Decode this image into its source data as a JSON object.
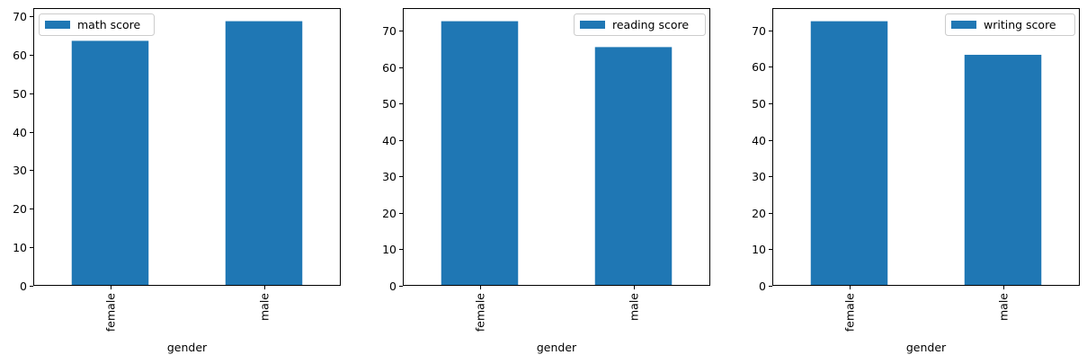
{
  "chart_data": [
    {
      "type": "bar",
      "categories": [
        "female",
        "male"
      ],
      "series": [
        {
          "name": "math score",
          "values": [
            63.6,
            68.7
          ]
        }
      ],
      "xlabel": "gender",
      "ylabel": "",
      "ylim": [
        0,
        72.1
      ],
      "yticks": [
        0,
        10,
        20,
        30,
        40,
        50,
        60,
        70
      ],
      "legend_position": "top-left",
      "color": "#1f77b4",
      "grid": false
    },
    {
      "type": "bar",
      "categories": [
        "female",
        "male"
      ],
      "series": [
        {
          "name": "reading score",
          "values": [
            72.6,
            65.5
          ]
        }
      ],
      "xlabel": "gender",
      "ylabel": "",
      "ylim": [
        0,
        76.2
      ],
      "yticks": [
        0,
        10,
        20,
        30,
        40,
        50,
        60,
        70
      ],
      "legend_position": "top-right",
      "color": "#1f77b4",
      "grid": false
    },
    {
      "type": "bar",
      "categories": [
        "female",
        "male"
      ],
      "series": [
        {
          "name": "writing score",
          "values": [
            72.5,
            63.3
          ]
        }
      ],
      "xlabel": "gender",
      "ylabel": "",
      "ylim": [
        0,
        76.1
      ],
      "yticks": [
        0,
        10,
        20,
        30,
        40,
        50,
        60,
        70
      ],
      "legend_position": "top-right",
      "color": "#1f77b4",
      "grid": false
    }
  ]
}
